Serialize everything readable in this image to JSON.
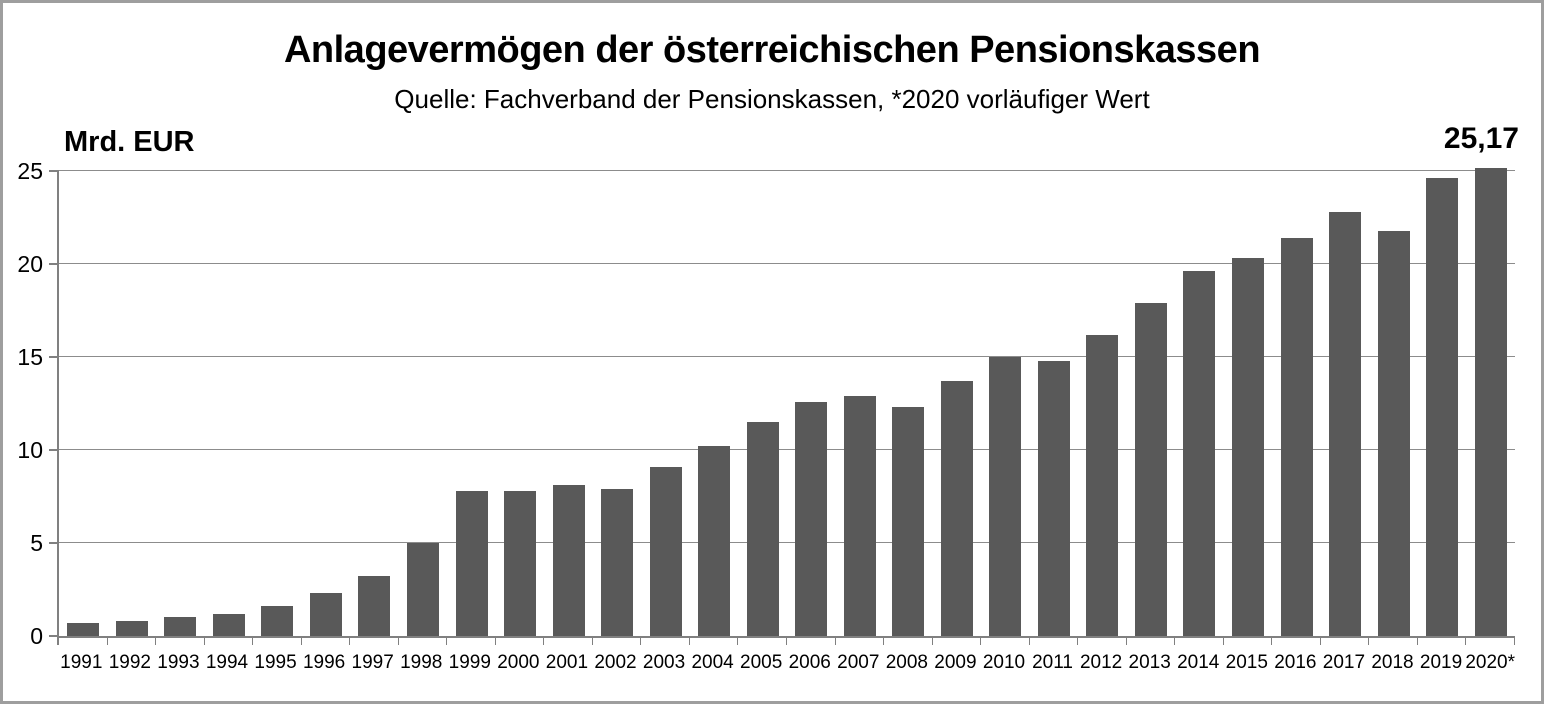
{
  "title": "Anlagevermögen der österreichischen Pensionskassen",
  "subtitle": "Quelle: Fachverband der Pensionskassen,  *2020 vorläufiger Wert",
  "unit_label": "Mrd. EUR",
  "peak_value_label": "25,17",
  "chart_data": {
    "type": "bar",
    "title": "Anlagevermögen der österreichischen Pensionskassen",
    "subtitle": "Quelle: Fachverband der Pensionskassen,  *2020 vorläufiger Wert",
    "xlabel": "",
    "ylabel": "Mrd. EUR",
    "ylim": [
      0,
      25
    ],
    "yticks": [
      0,
      5,
      10,
      15,
      20,
      25
    ],
    "grid": true,
    "legend": false,
    "bar_color": "#595959",
    "categories": [
      "1991",
      "1992",
      "1993",
      "1994",
      "1995",
      "1996",
      "1997",
      "1998",
      "1999",
      "2000",
      "2001",
      "2002",
      "2003",
      "2004",
      "2005",
      "2006",
      "2007",
      "2008",
      "2009",
      "2010",
      "2011",
      "2012",
      "2013",
      "2014",
      "2015",
      "2016",
      "2017",
      "2018",
      "2019",
      "2020*"
    ],
    "values": [
      0.7,
      0.8,
      1.0,
      1.2,
      1.6,
      2.3,
      3.2,
      5.0,
      7.8,
      7.8,
      8.1,
      7.9,
      9.1,
      10.2,
      11.5,
      12.6,
      12.9,
      12.3,
      13.7,
      15.0,
      14.8,
      16.2,
      17.9,
      19.6,
      20.3,
      21.4,
      22.8,
      21.8,
      24.6,
      25.17
    ],
    "annotations": [
      {
        "text": "25,17",
        "category": "2020*",
        "position": "above-last-bar"
      }
    ]
  },
  "colors": {
    "bar": "#595959",
    "gridline": "#8c8c8c",
    "axis": "#808080",
    "text": "#000000",
    "frame_border": "#9e9e9e",
    "background": "#ffffff"
  }
}
